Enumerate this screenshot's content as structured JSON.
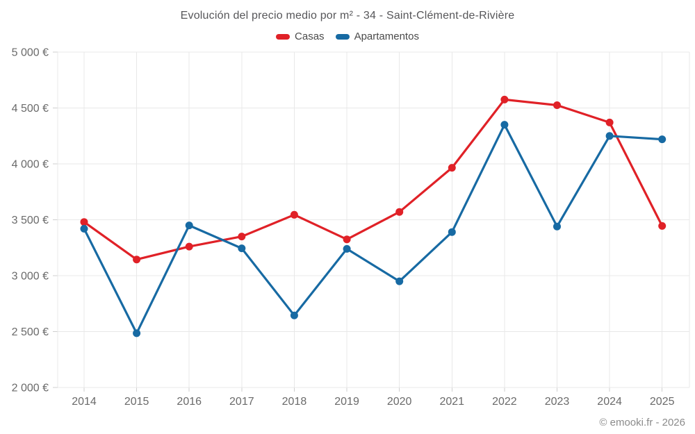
{
  "page": {
    "title": "Evolución del precio medio por m² - 34 - Saint-Clément-de-Rivière",
    "footer": "© emooki.fr - 2026"
  },
  "chart_data": {
    "type": "line",
    "title": "Evolución del precio medio por m² - 34 - Saint-Clément-de-Rivière",
    "x": [
      "2014",
      "2015",
      "2016",
      "2017",
      "2018",
      "2019",
      "2020",
      "2021",
      "2022",
      "2023",
      "2024",
      "2025"
    ],
    "series": [
      {
        "name": "Casas",
        "color": "#e02127",
        "values": [
          3480,
          3145,
          3260,
          3350,
          3545,
          3325,
          3570,
          3965,
          4575,
          4525,
          4370,
          3445
        ]
      },
      {
        "name": "Apartamentos",
        "color": "#176aa3",
        "values": [
          3420,
          2485,
          3450,
          3245,
          2645,
          3240,
          2950,
          3390,
          4350,
          3440,
          4250,
          4220
        ]
      }
    ],
    "ylim": [
      2000,
      5000
    ],
    "ytick_step": 500,
    "ytick_labels": [
      "2 000 €",
      "2 500 €",
      "3 000 €",
      "3 500 €",
      "4 000 €",
      "4 500 €",
      "5 000 €"
    ],
    "xlabel": "",
    "ylabel": "",
    "grid": true,
    "legend_position": "top",
    "marker": "circle"
  }
}
